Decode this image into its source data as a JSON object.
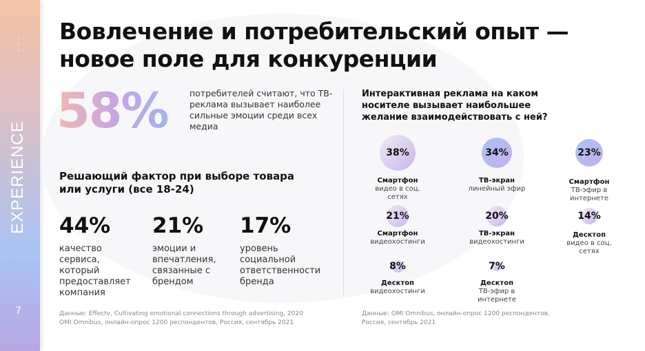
{
  "sidebar": {
    "section": "EXPERIENCE",
    "page": "7",
    "menu_icon": "vertical-dots-icon"
  },
  "title": "Вовлечение и потребительский опыт — новое поле для конкуренции",
  "hero": {
    "value": "58%",
    "text": "потребителей считают, что ТВ-реклама вызывает наиболее сильные эмоции среди всех медиа"
  },
  "factors": {
    "heading": "Решающий фактор при выборе товара или услуги (все 18-24)",
    "items": [
      {
        "value": "44%",
        "text": "качество сервиса, который предоставляет компания"
      },
      {
        "value": "21%",
        "text": "эмоции и впечатления, связанные с брендом"
      },
      {
        "value": "17%",
        "text": "уровень социальной ответственности бренда"
      }
    ],
    "source": "Данные: Effectv, Cultivating emotional connections through advertising, 2020\nOMI Omnibus, онлайн-опрос 1200 респондентов, Россия, сентябрь 2021"
  },
  "interactive": {
    "heading": "Интерактивная реклама на каком носителе вызывает наибольшее желание взаимодействовать с ней?",
    "items": [
      {
        "value": "38%",
        "device": "Смартфон",
        "type": "видео в соц. сетях"
      },
      {
        "value": "34%",
        "device": "ТВ-экран",
        "type": "линейный эфир"
      },
      {
        "value": "23%",
        "device": "Смартфон",
        "type": "ТВ-эфир в интернете"
      },
      {
        "value": "21%",
        "device": "Смартфон",
        "type": "видеохостинги"
      },
      {
        "value": "20%",
        "device": "ТВ-экран",
        "type": "видеохостинги"
      },
      {
        "value": "14%",
        "device": "Десктоп",
        "type": "видео в соц. сетях"
      },
      {
        "value": "8%",
        "device": "Десктоп",
        "type": "видеохостинги"
      },
      {
        "value": "7%",
        "device": "Десктоп",
        "type": "ТВ-эфир в интернете"
      }
    ],
    "source": "Данные: OMI Omnibus, онлайн-опрос 1200 респондентов, Россия, сентябрь 2021"
  },
  "colors": {
    "peach": "#f5c3a6",
    "blue": "#a9c3f5",
    "purple": "#b7a6e2"
  }
}
